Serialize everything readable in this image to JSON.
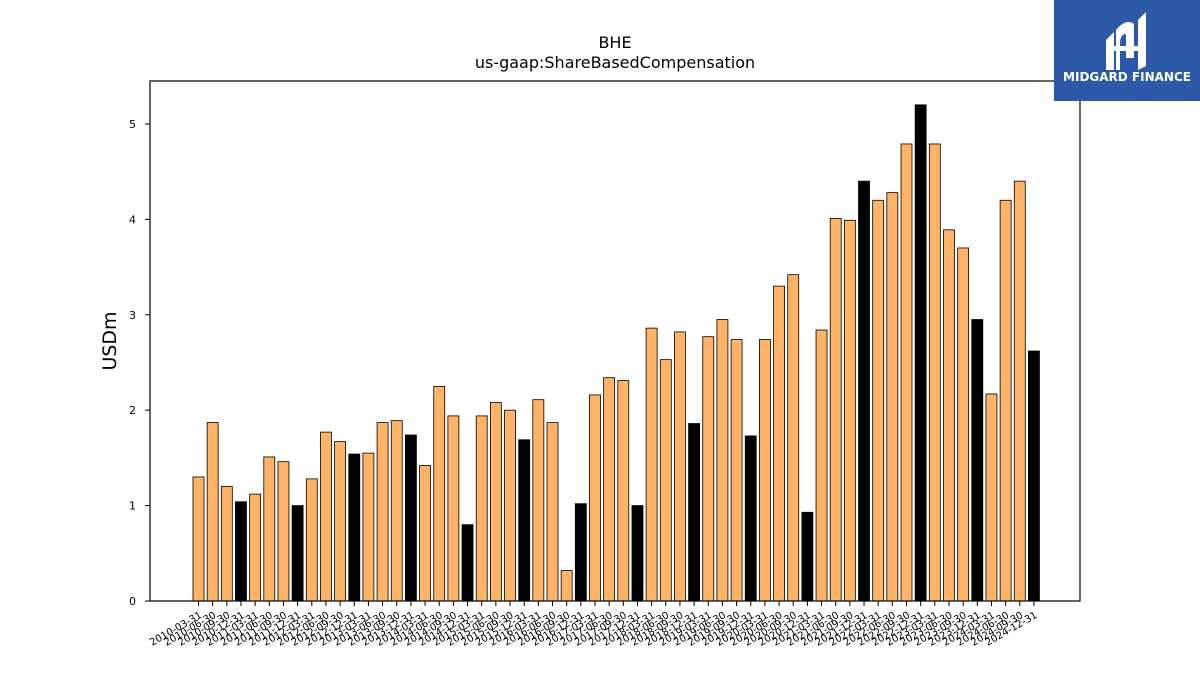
{
  "chart_data": {
    "type": "bar",
    "title": "BHE",
    "subtitle": "us-gaap:ShareBasedCompensation",
    "ylabel": "USDm",
    "xlabel": "",
    "ylim": [
      0,
      5.45
    ],
    "yticks": [
      0,
      1,
      2,
      3,
      4,
      5
    ],
    "grid": false,
    "legend": "none",
    "colors": {
      "quarter": "#ffb366",
      "annual": "#000000",
      "edge": "#000000"
    },
    "categories": [
      "2010-03-31",
      "2010-06-30",
      "2010-09-30",
      "2010-12-31",
      "2011-03-31",
      "2011-06-30",
      "2011-09-30",
      "2011-12-31",
      "2012-03-31",
      "2012-06-30",
      "2012-09-30",
      "2012-12-31",
      "2013-03-31",
      "2013-06-30",
      "2013-09-30",
      "2013-12-31",
      "2014-03-31",
      "2014-06-30",
      "2014-09-30",
      "2014-12-31",
      "2015-03-31",
      "2015-06-30",
      "2015-09-30",
      "2015-12-31",
      "2016-03-31",
      "2016-06-30",
      "2016-09-30",
      "2016-12-31",
      "2017-03-31",
      "2017-06-30",
      "2017-09-30",
      "2017-12-31",
      "2018-03-31",
      "2018-06-30",
      "2018-09-30",
      "2018-12-31",
      "2019-03-31",
      "2019-06-30",
      "2019-09-30",
      "2019-12-31",
      "2020-03-31",
      "2020-06-30",
      "2020-09-30",
      "2020-12-31",
      "2021-03-31",
      "2021-06-30",
      "2021-09-30",
      "2021-12-31",
      "2022-03-31",
      "2022-06-30",
      "2022-09-30",
      "2022-12-31",
      "2023-03-31",
      "2023-06-30",
      "2023-09-30",
      "2023-12-31",
      "2024-03-31",
      "2024-06-30",
      "2024-09-30",
      "2024-12-31"
    ],
    "values": [
      1.3,
      1.87,
      1.2,
      1.04,
      1.12,
      1.51,
      1.46,
      1.0,
      1.28,
      1.77,
      1.67,
      1.54,
      1.55,
      1.87,
      1.89,
      1.74,
      1.42,
      2.25,
      1.94,
      0.8,
      1.94,
      2.08,
      2.0,
      1.69,
      2.11,
      1.87,
      0.32,
      1.02,
      2.16,
      2.34,
      2.31,
      1.0,
      2.86,
      2.53,
      2.82,
      1.86,
      2.77,
      2.95,
      2.74,
      1.73,
      2.74,
      3.3,
      3.42,
      0.93,
      2.84,
      4.01,
      3.99,
      4.4,
      4.2,
      4.28,
      4.79,
      5.2,
      4.79,
      3.89,
      3.7,
      2.95,
      2.17,
      4.2,
      4.4,
      2.62
    ],
    "bar_kind": [
      "q",
      "q",
      "q",
      "a",
      "q",
      "q",
      "q",
      "a",
      "q",
      "q",
      "q",
      "a",
      "q",
      "q",
      "q",
      "a",
      "q",
      "q",
      "q",
      "a",
      "q",
      "q",
      "q",
      "a",
      "q",
      "q",
      "q",
      "a",
      "q",
      "q",
      "q",
      "a",
      "q",
      "q",
      "q",
      "a",
      "q",
      "q",
      "q",
      "a",
      "q",
      "q",
      "q",
      "a",
      "q",
      "q",
      "q",
      "a",
      "q",
      "q",
      "q",
      "a",
      "q",
      "q",
      "q",
      "a",
      "q",
      "q",
      "q",
      "a"
    ]
  },
  "logo": {
    "text": "MIDGARD FINANCE"
  }
}
